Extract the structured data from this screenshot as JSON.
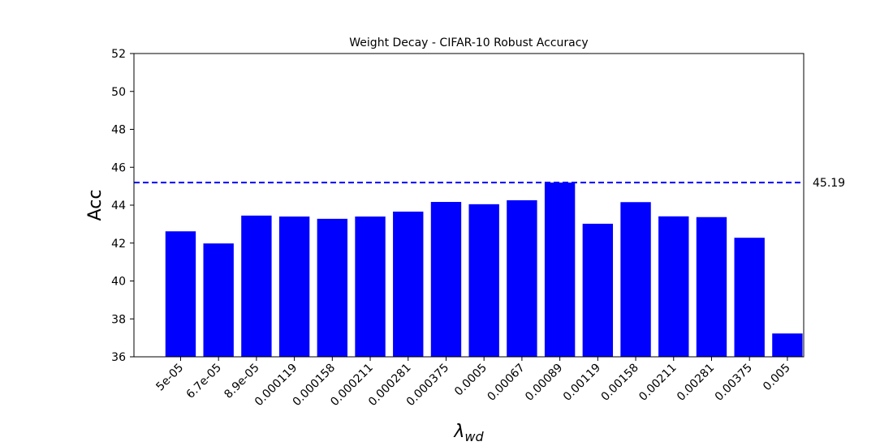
{
  "chart_data": {
    "type": "bar",
    "title": "Weight Decay - CIFAR-10 Robust Accuracy",
    "xlabel_symbol": "λ",
    "xlabel_subscript": "wd",
    "ylabel": "Acc",
    "categories": [
      "5e-05",
      "6.7e-05",
      "8.9e-05",
      "0.000119",
      "0.000158",
      "0.000211",
      "0.000281",
      "0.000375",
      "0.0005",
      "0.00067",
      "0.00089",
      "0.00119",
      "0.00158",
      "0.00211",
      "0.00281",
      "0.00375",
      "0.005"
    ],
    "values": [
      42.62,
      41.98,
      43.45,
      43.4,
      43.28,
      43.4,
      43.66,
      44.17,
      44.05,
      44.26,
      45.19,
      43.02,
      44.16,
      43.41,
      43.37,
      42.28,
      37.23
    ],
    "ylim": [
      36,
      52
    ],
    "yticks": [
      "36",
      "38",
      "40",
      "42",
      "44",
      "46",
      "48",
      "50",
      "52"
    ],
    "bar_color": "#0000ff",
    "reference_line": {
      "value": 45.19,
      "label": "45.19",
      "color": "#0000ff",
      "style": "dashed"
    },
    "grid": false
  }
}
